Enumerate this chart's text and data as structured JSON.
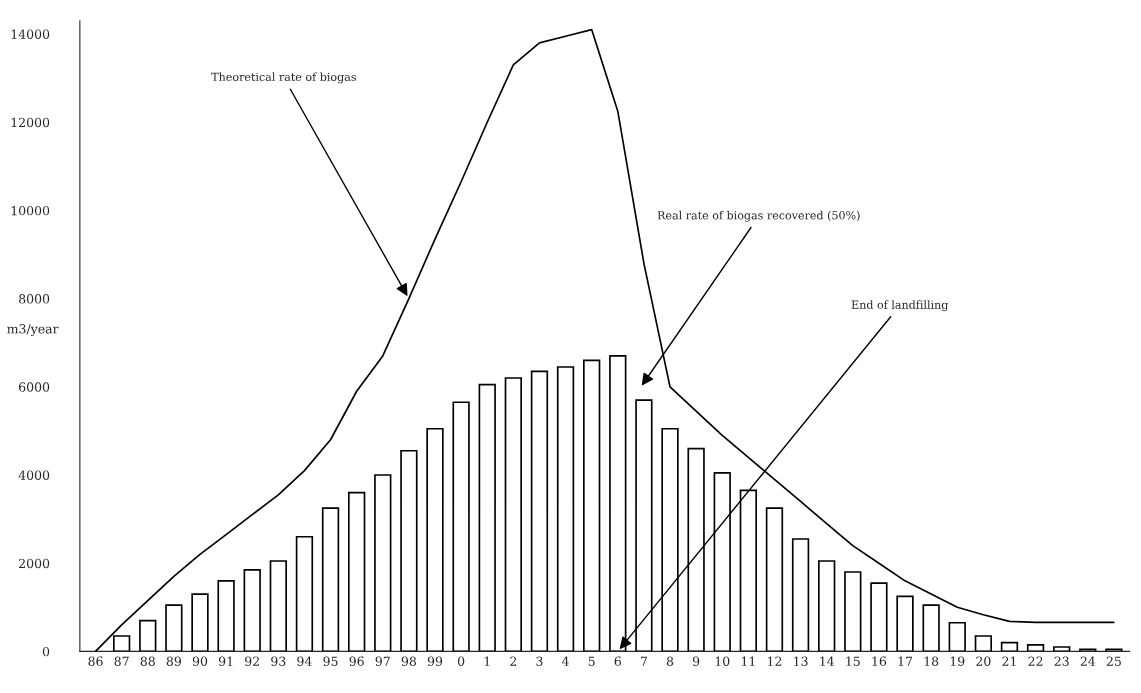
{
  "chart_data": {
    "type": "bar",
    "categories": [
      "86",
      "87",
      "88",
      "89",
      "90",
      "91",
      "92",
      "93",
      "94",
      "95",
      "96",
      "97",
      "98",
      "99",
      "0",
      "1",
      "2",
      "3",
      "4",
      "5",
      "6",
      "7",
      "8",
      "9",
      "10",
      "11",
      "12",
      "13",
      "14",
      "15",
      "16",
      "17",
      "18",
      "19",
      "20",
      "21",
      "22",
      "23",
      "24",
      "25"
    ],
    "series": [
      {
        "color": "#ffffff",
        "values": [
          null,
          350,
          700,
          1050,
          1300,
          1600,
          1850,
          2050,
          2600,
          3250,
          3600,
          4000,
          4550,
          5050,
          5650,
          6050,
          6200,
          6350,
          6450,
          6600,
          6700,
          5700,
          5050,
          4600,
          4050,
          3650,
          3250,
          2550,
          2050,
          1800,
          1550,
          1250,
          1050,
          650,
          350,
          200,
          150,
          100,
          50,
          50
        ]
      },
      {
        "type": "line",
        "color": "#000000",
        "values": [
          0,
          600,
          1150,
          1700,
          2200,
          2650,
          3100,
          3550,
          4100,
          4800,
          5900,
          6700,
          8000,
          9350,
          10650,
          12000,
          13300,
          13800,
          13950,
          14100,
          12250,
          8800,
          6000,
          5450,
          4900,
          4400,
          3900,
          3400,
          2900,
          2400,
          2000,
          1600,
          1300,
          1000,
          830,
          680,
          660,
          660,
          660,
          660
        ]
      }
    ],
    "ylabel": "m3/year",
    "ylim": [
      0,
      14300
    ],
    "yticks": [
      0,
      2000,
      4000,
      6000,
      8000,
      10000,
      12000,
      14000
    ],
    "grid": false,
    "legend": false,
    "annotations": [
      {
        "text": "Theoretical rate of biogas",
        "x": "98",
        "y": 8000
      },
      "Real rate of biogas recovered (50%)",
      {
        "text": "End of landfilling",
        "x": "6",
        "y": 0
      }
    ]
  }
}
